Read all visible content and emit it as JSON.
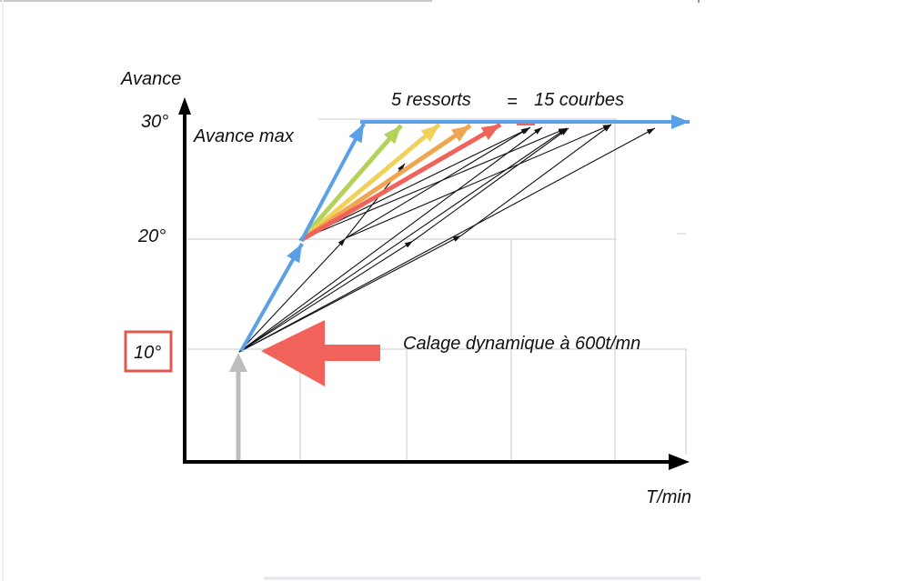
{
  "diagram": {
    "y_axis_label": "Avance",
    "x_axis_label": "T/min",
    "tick_30": "30°",
    "tick_20": "20°",
    "tick_10": "10°",
    "max_label": "Avance max",
    "springs_label": "5 ressorts",
    "equals_sign": "=",
    "curves_label": "15 courbes",
    "callout": "Calage dynamique à 600t/mn"
  },
  "colors": {
    "blue": "#5aa0e6",
    "red": "#f0625a",
    "orange": "#f0a550",
    "yellow": "#f0d25a",
    "green": "#b4d25a",
    "grey": "#bdbdbd",
    "tick_box": "#e0594f"
  }
}
